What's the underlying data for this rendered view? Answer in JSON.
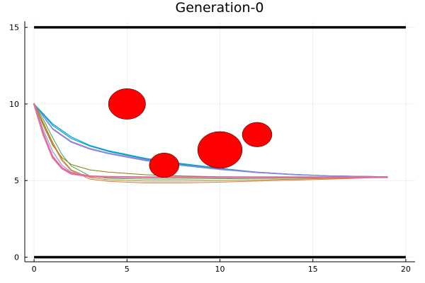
{
  "chart_data": {
    "type": "line",
    "title": "Generation-0",
    "xlabel": "",
    "ylabel": "",
    "xlim": [
      -0.5,
      20.5
    ],
    "ylim": [
      -0.3,
      15.4
    ],
    "x_ticks": [
      0,
      5,
      10,
      15,
      20
    ],
    "x_tick_labels": [
      "0",
      "5",
      "10",
      "15",
      "20"
    ],
    "y_ticks": [
      0,
      5,
      10,
      15
    ],
    "y_tick_labels": [
      "0",
      "5",
      "10",
      "15"
    ],
    "grid": true,
    "legend": "none",
    "boundaries": [
      {
        "y": 15,
        "x_range": [
          0,
          20
        ],
        "color": "#000000"
      },
      {
        "y": 0,
        "x_range": [
          0,
          20
        ],
        "color": "#000000"
      }
    ],
    "obstacles": [
      {
        "cx": 5,
        "cy": 10,
        "r": 1.0,
        "color": "#ff0000"
      },
      {
        "cx": 7,
        "cy": 6,
        "r": 0.8,
        "color": "#ff0000"
      },
      {
        "cx": 10,
        "cy": 7,
        "r": 1.2,
        "color": "#ff0000"
      },
      {
        "cx": 12,
        "cy": 8,
        "r": 0.8,
        "color": "#ff0000"
      }
    ],
    "series": [
      {
        "color": "#009af9",
        "width": 1.2,
        "x": [
          0,
          1,
          2,
          3,
          4,
          6,
          8,
          10,
          12,
          14,
          16,
          19
        ],
        "y": [
          10,
          8.7,
          7.85,
          7.3,
          6.95,
          6.45,
          6.1,
          5.8,
          5.55,
          5.4,
          5.3,
          5.25
        ]
      },
      {
        "color": "#00a9ad",
        "width": 1.2,
        "x": [
          0,
          1,
          2,
          3,
          4,
          6,
          8,
          10,
          12,
          14,
          16,
          19
        ],
        "y": [
          10,
          8.6,
          7.75,
          7.25,
          6.9,
          6.4,
          6.05,
          5.78,
          5.55,
          5.4,
          5.3,
          5.25
        ]
      },
      {
        "color": "#c271d2",
        "width": 1.2,
        "x": [
          0,
          1,
          2,
          3,
          4,
          6,
          8,
          10,
          12,
          14,
          16,
          19
        ],
        "y": [
          10,
          8.4,
          7.55,
          7.1,
          6.8,
          6.35,
          6.0,
          5.75,
          5.55,
          5.4,
          5.3,
          5.25
        ]
      },
      {
        "color": "#6a8ee3",
        "width": 1.2,
        "x": [
          0,
          1,
          2,
          3,
          4,
          6,
          8,
          10,
          12,
          14,
          16,
          19
        ],
        "y": [
          10,
          8.35,
          7.5,
          7.05,
          6.75,
          6.3,
          5.98,
          5.72,
          5.52,
          5.38,
          5.3,
          5.25
        ]
      },
      {
        "color": "#808000",
        "width": 1.0,
        "x": [
          0,
          0.5,
          1,
          1.5,
          2,
          3,
          4,
          6,
          8,
          10,
          13,
          16,
          19
        ],
        "y": [
          10,
          8.6,
          7.3,
          6.5,
          6.05,
          5.7,
          5.55,
          5.38,
          5.3,
          5.25,
          5.22,
          5.22,
          5.22
        ]
      },
      {
        "color": "#3da44d",
        "width": 1.0,
        "x": [
          0,
          0.5,
          1,
          1.5,
          2,
          3,
          4,
          6,
          8,
          10,
          13,
          16,
          19
        ],
        "y": [
          10,
          9.0,
          7.8,
          6.7,
          5.95,
          5.3,
          5.15,
          5.1,
          5.1,
          5.12,
          5.15,
          5.18,
          5.22
        ]
      },
      {
        "color": "#e26f46",
        "width": 1.0,
        "x": [
          0,
          0.5,
          1,
          1.5,
          2,
          3,
          4,
          6,
          8,
          10,
          13,
          16,
          19
        ],
        "y": [
          10,
          8.7,
          7.4,
          6.3,
          5.65,
          5.1,
          4.95,
          4.85,
          4.85,
          4.9,
          5.0,
          5.1,
          5.22
        ]
      },
      {
        "color": "#ac8d18",
        "width": 1.0,
        "x": [
          0,
          0.5,
          1,
          1.5,
          2,
          3,
          4,
          6,
          8,
          10,
          13,
          16,
          19
        ],
        "y": [
          10,
          8.8,
          7.5,
          6.4,
          5.7,
          5.2,
          5.05,
          4.97,
          4.97,
          5.0,
          5.07,
          5.15,
          5.22
        ]
      },
      {
        "color": "#b0a1d8",
        "width": 1.5,
        "x": [
          0,
          0.5,
          1,
          1.5,
          2,
          3,
          4,
          6,
          8,
          10,
          13,
          16,
          19
        ],
        "y": [
          10,
          8.3,
          6.9,
          6.0,
          5.55,
          5.3,
          5.22,
          5.2,
          5.2,
          5.2,
          5.21,
          5.22,
          5.22
        ]
      },
      {
        "color": "#e4729c",
        "width": 1.5,
        "x": [
          0,
          0.5,
          1,
          1.5,
          2,
          3,
          4,
          6,
          8,
          10,
          13,
          16,
          19
        ],
        "y": [
          10,
          8.1,
          6.6,
          5.85,
          5.5,
          5.3,
          5.25,
          5.22,
          5.22,
          5.22,
          5.22,
          5.22,
          5.22
        ]
      },
      {
        "color": "#e26f9a",
        "width": 2.5,
        "x": [
          0,
          0.5,
          1,
          1.5,
          2,
          3,
          4,
          6,
          8,
          10,
          13,
          16,
          19
        ],
        "y": [
          10,
          8.0,
          6.5,
          5.8,
          5.45,
          5.28,
          5.24,
          5.22,
          5.22,
          5.22,
          5.22,
          5.22,
          5.22
        ]
      }
    ]
  }
}
